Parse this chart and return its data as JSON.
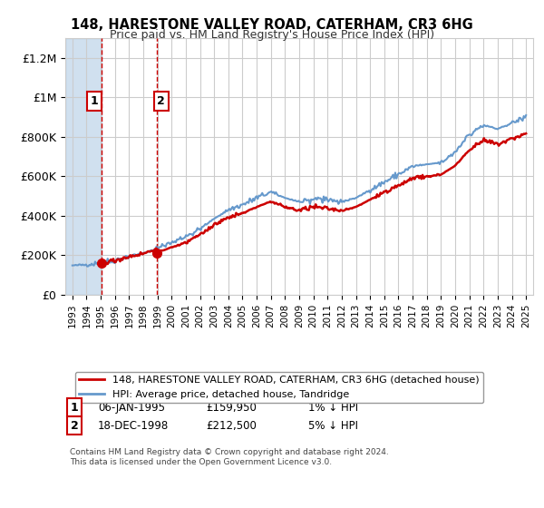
{
  "title": "148, HARESTONE VALLEY ROAD, CATERHAM, CR3 6HG",
  "subtitle": "Price paid vs. HM Land Registry's House Price Index (HPI)",
  "legend_line1": "148, HARESTONE VALLEY ROAD, CATERHAM, CR3 6HG (detached house)",
  "legend_line2": "HPI: Average price, detached house, Tandridge",
  "sale1_label": "1",
  "sale1_date": "06-JAN-1995",
  "sale1_price": "£159,950",
  "sale1_note": "1% ↓ HPI",
  "sale1_year": 1995.03,
  "sale1_value": 159950,
  "sale2_label": "2",
  "sale2_date": "18-DEC-1998",
  "sale2_price": "£212,500",
  "sale2_note": "5% ↓ HPI",
  "sale2_year": 1998.97,
  "sale2_value": 212500,
  "hpi_color": "#6699cc",
  "price_color": "#cc0000",
  "hatch_color": "#ccddee",
  "bg_color": "#ffffff",
  "grid_color": "#cccccc",
  "footnote": "Contains HM Land Registry data © Crown copyright and database right 2024.\nThis data is licensed under the Open Government Licence v3.0.",
  "ylim_min": 0,
  "ylim_max": 1300000,
  "xlim_min": 1992.5,
  "xlim_max": 2025.5
}
